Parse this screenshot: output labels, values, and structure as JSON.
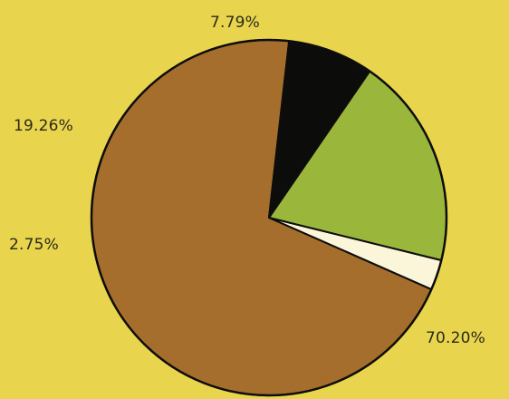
{
  "chart_data": {
    "type": "pie",
    "slices": [
      {
        "label": "70.20%",
        "value": 70.2,
        "color": "#a66e2c"
      },
      {
        "label": "2.75%",
        "value": 2.75,
        "color": "#fbf5da"
      },
      {
        "label": "19.26%",
        "value": 19.26,
        "color": "#9bb73b"
      },
      {
        "label": "7.79%",
        "value": 7.79,
        "color": "#0c0c0a"
      }
    ],
    "title": "",
    "legend": "none",
    "background": "#e9d44e"
  }
}
